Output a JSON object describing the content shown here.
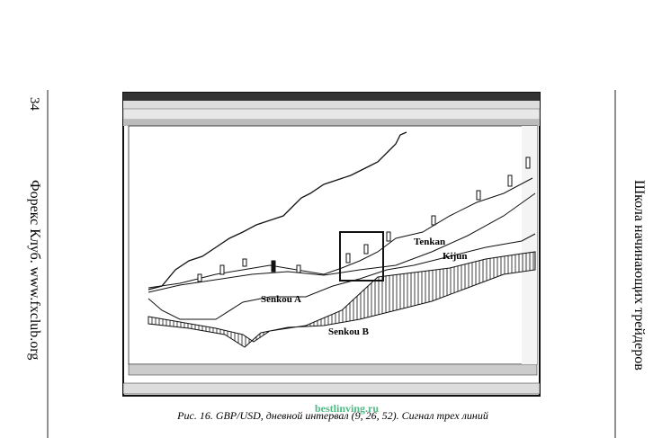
{
  "page": {
    "number": "34",
    "left_running_head": "Форекс Клуб. www.fxclub.org",
    "right_running_head": "Школа начинающих трейдеров"
  },
  "figure": {
    "labels": [
      "Tenkan",
      "Kijun",
      "Senkou A",
      "Senkou B"
    ],
    "caption": "Рис. 16. GBP/USD, дневной интервал (9, 26, 52). Сигнал трех линий",
    "watermark": "bestlinving.ru"
  }
}
